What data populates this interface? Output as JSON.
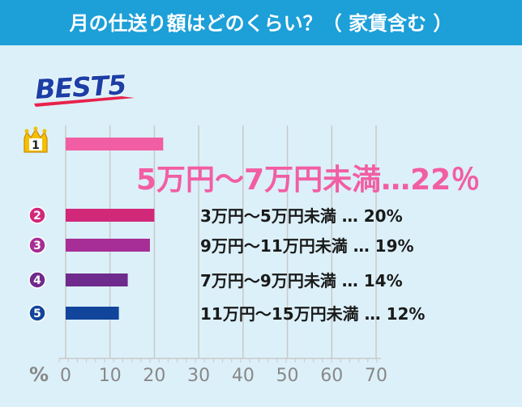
{
  "chart_data": {
    "type": "bar",
    "orientation": "horizontal",
    "title": "月の仕送り額はどのくらい？（ 家賃含む ）",
    "subtitle": "BEST5",
    "xlabel": "%",
    "xlim": [
      0,
      70
    ],
    "x_ticks": [
      "0",
      "10",
      "20",
      "30",
      "40",
      "50",
      "60",
      "70"
    ],
    "grid": true,
    "ranks": [
      "1",
      "2",
      "3",
      "4",
      "5"
    ],
    "categories": [
      "5万円～7万円未満",
      "3万円～5万円未満",
      "9万円～11万円未満",
      "7万円～9万円未満",
      "11万円～15万円未満"
    ],
    "values": [
      22,
      20,
      19,
      14,
      12
    ],
    "value_labels": [
      "22％",
      "20%",
      "19%",
      "14%",
      "12%"
    ],
    "colors": [
      "#f25ea3",
      "#d1287a",
      "#a62e96",
      "#6e2a8c",
      "#11449b"
    ]
  },
  "colors": {
    "title_bg": "#1d9fd8",
    "plot_bg": "#dcf0f9",
    "grid": "#c9c9c9",
    "axis_text": "#888888",
    "highlight_text": "#f25ea3",
    "best5_text": "#1c3fa6",
    "best5_underline": "#e8214a",
    "crown": "#f4c000"
  },
  "icons": {
    "rank1": "crown-icon",
    "rank_other": "numbered-circle-icon"
  }
}
